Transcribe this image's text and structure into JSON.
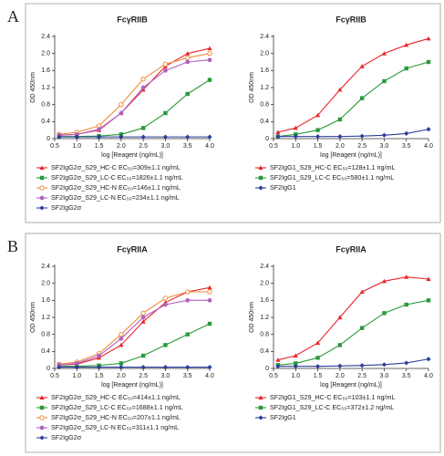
{
  "panel_labels": [
    "A",
    "B"
  ],
  "chart_data": [
    {
      "type": "line",
      "title": "FcγRIIB",
      "xlabel": "log [Reagent (ng/mL)]",
      "ylabel": "OD 450nm",
      "x": [
        0.6,
        1.0,
        1.5,
        2.0,
        2.5,
        3.0,
        3.5,
        4.0
      ],
      "xlim": [
        0.5,
        4
      ],
      "xticks": [
        0.5,
        {
          "value": 1,
          "label": "1.0"
        },
        1.5,
        {
          "value": 2,
          "label": "2.0"
        },
        2.5,
        {
          "value": 3,
          "label": "3.0"
        },
        3.5,
        {
          "value": 4,
          "label": "4.0"
        }
      ],
      "ylim": [
        0,
        2.4
      ],
      "yticks": [
        0,
        0.4,
        0.8,
        1.2,
        1.6,
        {
          "value": 2,
          "label": "2.0"
        },
        2.4
      ],
      "series": [
        {
          "name": "SF2IgG2σ_S29_HC-C EC₅₀=309±1.1 ng/mL",
          "color": "#e8262b",
          "marker": "triangle",
          "values": [
            0.08,
            0.1,
            0.2,
            0.6,
            1.15,
            1.7,
            2.0,
            2.12
          ]
        },
        {
          "name": "SF2IgG2σ_S29_LC-C EC₅₀=1826±1.1 ng/mL",
          "color": "#2a9a3a",
          "marker": "square",
          "values": [
            0.05,
            0.05,
            0.06,
            0.1,
            0.25,
            0.6,
            1.05,
            1.38
          ]
        },
        {
          "name": "SF2IgG2σ_S29_HC-N EC₅₀=146±1.1 ng/mL",
          "color": "#f08a3c",
          "marker": "open-circle",
          "values": [
            0.1,
            0.15,
            0.3,
            0.8,
            1.4,
            1.75,
            1.9,
            2.0
          ]
        },
        {
          "name": "SF2IgG2σ_S29_LC-N EC₅₀=234±1.1 ng/mL",
          "color": "#b060c0",
          "marker": "circle",
          "values": [
            0.08,
            0.1,
            0.22,
            0.6,
            1.2,
            1.6,
            1.8,
            1.85
          ]
        },
        {
          "name": "SF2IgG2σ",
          "color": "#2c3e9a",
          "marker": "diamond",
          "values": [
            0.04,
            0.04,
            0.04,
            0.04,
            0.04,
            0.04,
            0.04,
            0.04
          ]
        }
      ]
    },
    {
      "type": "line",
      "title": "FcγRIIB",
      "xlabel": "log [Reagent (ng/mL)]",
      "ylabel": "OD 450nm",
      "x": [
        0.6,
        1.0,
        1.5,
        2.0,
        2.5,
        3.0,
        3.5,
        4.0
      ],
      "xlim": [
        0.5,
        4
      ],
      "xticks": [
        0.5,
        {
          "value": 1,
          "label": "1.0"
        },
        1.5,
        {
          "value": 2,
          "label": "2.0"
        },
        2.5,
        {
          "value": 3,
          "label": "3.0"
        },
        3.5,
        {
          "value": 4,
          "label": "4.0"
        }
      ],
      "ylim": [
        0,
        2.4
      ],
      "yticks": [
        0,
        0.4,
        0.8,
        1.2,
        1.6,
        {
          "value": 2,
          "label": "2.0"
        },
        2.4
      ],
      "series": [
        {
          "name": "SF2IgG1_S29_HC-C EC₅₀=128±1.1 ng/mL",
          "color": "#e8262b",
          "marker": "triangle",
          "values": [
            0.15,
            0.25,
            0.55,
            1.15,
            1.7,
            2.0,
            2.2,
            2.35
          ]
        },
        {
          "name": "SF2IgG1_S29_LC-C EC₅₀=580±1.1 ng/mL",
          "color": "#2a9a3a",
          "marker": "square",
          "values": [
            0.05,
            0.1,
            0.2,
            0.45,
            0.95,
            1.35,
            1.65,
            1.8
          ]
        },
        {
          "name": "SF2IgG1",
          "color": "#2c3e9a",
          "marker": "diamond",
          "values": [
            0.05,
            0.05,
            0.05,
            0.05,
            0.06,
            0.08,
            0.12,
            0.22
          ]
        }
      ]
    },
    {
      "type": "line",
      "title": "FcγRIIA",
      "xlabel": "log [Reagent (ng/mL)]",
      "ylabel": "OD 450nm",
      "x": [
        0.6,
        1.0,
        1.5,
        2.0,
        2.5,
        3.0,
        3.5,
        4.0
      ],
      "xlim": [
        0.5,
        4
      ],
      "xticks": [
        0.5,
        {
          "value": 1,
          "label": "1.0"
        },
        1.5,
        {
          "value": 2,
          "label": "2.0"
        },
        2.5,
        {
          "value": 3,
          "label": "3.0"
        },
        3.5,
        {
          "value": 4,
          "label": "4.0"
        }
      ],
      "ylim": [
        0,
        2.4
      ],
      "yticks": [
        0,
        0.4,
        0.8,
        1.2,
        1.6,
        {
          "value": 2,
          "label": "2.0"
        },
        2.4
      ],
      "series": [
        {
          "name": "SF2IgG2σ_S29_HC-C EC₅₀=414±1.1 ng/mL",
          "color": "#e8262b",
          "marker": "triangle",
          "values": [
            0.08,
            0.1,
            0.25,
            0.55,
            1.1,
            1.55,
            1.8,
            1.9
          ]
        },
        {
          "name": "SF2IgG2σ_S29_LC-C EC₅₀=1688±1.1 ng/mL",
          "color": "#2a9a3a",
          "marker": "square",
          "values": [
            0.05,
            0.05,
            0.07,
            0.12,
            0.3,
            0.55,
            0.8,
            1.05
          ]
        },
        {
          "name": "SF2IgG2σ_S29_HC-N EC₅₀=207±1.1 ng/mL",
          "color": "#f08a3c",
          "marker": "open-circle",
          "values": [
            0.1,
            0.15,
            0.35,
            0.8,
            1.3,
            1.65,
            1.8,
            1.8
          ]
        },
        {
          "name": "SF2IgG2σ_S29_LC-N EC₅₀=311±1.1 ng/mL",
          "color": "#b060c0",
          "marker": "circle",
          "values": [
            0.08,
            0.12,
            0.3,
            0.7,
            1.2,
            1.5,
            1.6,
            1.6
          ]
        },
        {
          "name": "SF2IgG2σ",
          "color": "#2c3e9a",
          "marker": "diamond",
          "values": [
            0.03,
            0.03,
            0.03,
            0.03,
            0.03,
            0.03,
            0.03,
            0.03
          ]
        }
      ]
    },
    {
      "type": "line",
      "title": "FcγRIIA",
      "xlabel": "log [Reagent (ng/mL)]",
      "ylabel": "OD 450nm",
      "x": [
        0.6,
        1.0,
        1.5,
        2.0,
        2.5,
        3.0,
        3.5,
        4.0
      ],
      "xlim": [
        0.5,
        4
      ],
      "xticks": [
        0.5,
        {
          "value": 1,
          "label": "1.0"
        },
        1.5,
        {
          "value": 2,
          "label": "2.0"
        },
        2.5,
        {
          "value": 3,
          "label": "3.0"
        },
        3.5,
        {
          "value": 4,
          "label": "4.0"
        }
      ],
      "ylim": [
        0,
        2.4
      ],
      "yticks": [
        0,
        0.4,
        0.8,
        1.2,
        1.6,
        {
          "value": 2,
          "label": "2.0"
        },
        2.4
      ],
      "series": [
        {
          "name": "SF2IgG1_S29_HC-C EC₅₀=103±1.1 ng/mL",
          "color": "#e8262b",
          "marker": "triangle",
          "values": [
            0.2,
            0.3,
            0.6,
            1.2,
            1.8,
            2.05,
            2.15,
            2.1
          ]
        },
        {
          "name": "SF2IgG1_S29_LC-C EC₅₀=372±1.2 ng/mL",
          "color": "#2a9a3a",
          "marker": "square",
          "values": [
            0.08,
            0.12,
            0.25,
            0.55,
            0.95,
            1.3,
            1.5,
            1.6
          ]
        },
        {
          "name": "SF2IgG1",
          "color": "#2c3e9a",
          "marker": "diamond",
          "values": [
            0.05,
            0.05,
            0.05,
            0.06,
            0.07,
            0.09,
            0.13,
            0.22
          ]
        }
      ]
    }
  ]
}
